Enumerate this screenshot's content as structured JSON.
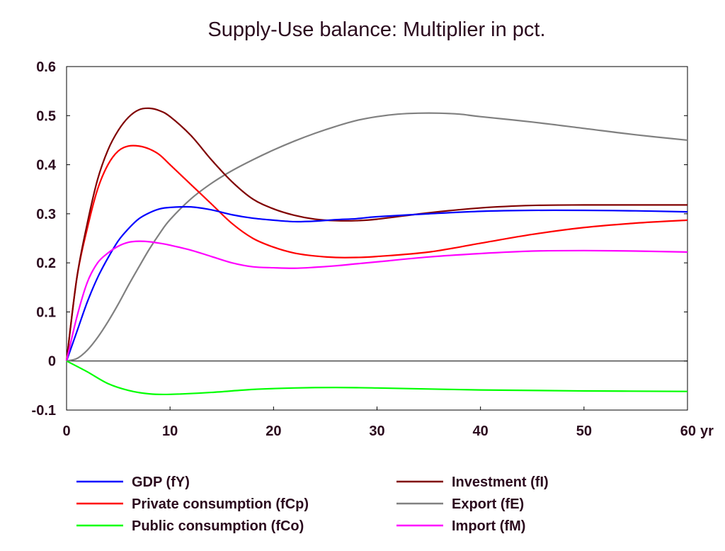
{
  "chart_data": {
    "type": "line",
    "title": "Supply-Use balance: Multiplier in pct.",
    "x_unit_label": "yr",
    "xlim": [
      0,
      60
    ],
    "ylim": [
      -0.1,
      0.6
    ],
    "x_ticks": [
      "0",
      "10",
      "20",
      "30",
      "40",
      "50",
      "60"
    ],
    "y_ticks": [
      "0.6",
      "0.5",
      "0.4",
      "0.3",
      "0.2",
      "0.1",
      "0",
      "-0.1"
    ],
    "grid": false,
    "zero_line": true,
    "legend_position": "bottom",
    "series": [
      {
        "name": "GDP (fY)",
        "color": "#0000ff",
        "x": [
          0,
          1,
          2,
          3,
          4,
          5,
          6,
          7,
          8,
          9,
          10,
          12,
          14,
          16,
          18,
          20,
          22,
          24,
          26,
          28,
          30,
          35,
          40,
          45,
          50,
          55,
          60
        ],
        "y": [
          0,
          0.06,
          0.12,
          0.17,
          0.21,
          0.245,
          0.27,
          0.29,
          0.302,
          0.31,
          0.313,
          0.314,
          0.308,
          0.298,
          0.291,
          0.287,
          0.284,
          0.285,
          0.288,
          0.29,
          0.294,
          0.3,
          0.305,
          0.307,
          0.307,
          0.306,
          0.304
        ]
      },
      {
        "name": "Private consumption (fCp)",
        "color": "#ff0000",
        "x": [
          0,
          1,
          2,
          3,
          4,
          5,
          6,
          7,
          8,
          9,
          10,
          12,
          14,
          16,
          18,
          20,
          22,
          24,
          26,
          28,
          30,
          35,
          40,
          45,
          50,
          55,
          60
        ],
        "y": [
          0,
          0.17,
          0.27,
          0.35,
          0.4,
          0.428,
          0.438,
          0.438,
          0.432,
          0.42,
          0.4,
          0.36,
          0.32,
          0.28,
          0.25,
          0.232,
          0.22,
          0.214,
          0.211,
          0.211,
          0.213,
          0.222,
          0.24,
          0.258,
          0.272,
          0.281,
          0.287
        ]
      },
      {
        "name": "Public consumption (fCo)",
        "color": "#00ff00",
        "x": [
          0,
          2,
          4,
          6,
          8,
          10,
          14,
          18,
          22,
          26,
          30,
          40,
          50,
          60
        ],
        "y": [
          0,
          -0.022,
          -0.046,
          -0.06,
          -0.067,
          -0.068,
          -0.064,
          -0.058,
          -0.055,
          -0.054,
          -0.055,
          -0.059,
          -0.061,
          -0.062
        ]
      },
      {
        "name": "Investment (fI)",
        "color": "#800000",
        "x": [
          0,
          1,
          2,
          3,
          4,
          5,
          6,
          7,
          8,
          9,
          10,
          12,
          14,
          16,
          18,
          20,
          22,
          24,
          26,
          28,
          30,
          35,
          40,
          45,
          50,
          55,
          60
        ],
        "y": [
          0,
          0.17,
          0.28,
          0.37,
          0.43,
          0.47,
          0.497,
          0.512,
          0.515,
          0.51,
          0.498,
          0.46,
          0.41,
          0.365,
          0.33,
          0.31,
          0.297,
          0.289,
          0.286,
          0.286,
          0.289,
          0.302,
          0.312,
          0.317,
          0.318,
          0.318,
          0.318
        ]
      },
      {
        "name": "Export (fE)",
        "color": "#808080",
        "x": [
          0,
          1,
          2,
          3,
          4,
          5,
          6,
          7,
          8,
          9,
          10,
          12,
          14,
          16,
          18,
          20,
          22,
          24,
          26,
          28,
          30,
          32,
          34,
          36,
          38,
          40,
          45,
          50,
          55,
          60
        ],
        "y": [
          0,
          0.005,
          0.022,
          0.048,
          0.08,
          0.116,
          0.155,
          0.192,
          0.228,
          0.26,
          0.288,
          0.33,
          0.362,
          0.388,
          0.41,
          0.43,
          0.448,
          0.464,
          0.478,
          0.49,
          0.498,
          0.503,
          0.505,
          0.505,
          0.503,
          0.498,
          0.487,
          0.474,
          0.461,
          0.45
        ]
      },
      {
        "name": "Import (fM)",
        "color": "#ff00ff",
        "x": [
          0,
          1,
          2,
          3,
          4,
          5,
          6,
          7,
          8,
          9,
          10,
          12,
          14,
          16,
          18,
          20,
          22,
          24,
          26,
          28,
          30,
          35,
          40,
          45,
          50,
          55,
          60
        ],
        "y": [
          0,
          0.09,
          0.16,
          0.2,
          0.22,
          0.234,
          0.242,
          0.244,
          0.243,
          0.24,
          0.236,
          0.226,
          0.213,
          0.2,
          0.192,
          0.19,
          0.189,
          0.191,
          0.194,
          0.198,
          0.202,
          0.212,
          0.219,
          0.224,
          0.225,
          0.224,
          0.222
        ]
      }
    ]
  }
}
